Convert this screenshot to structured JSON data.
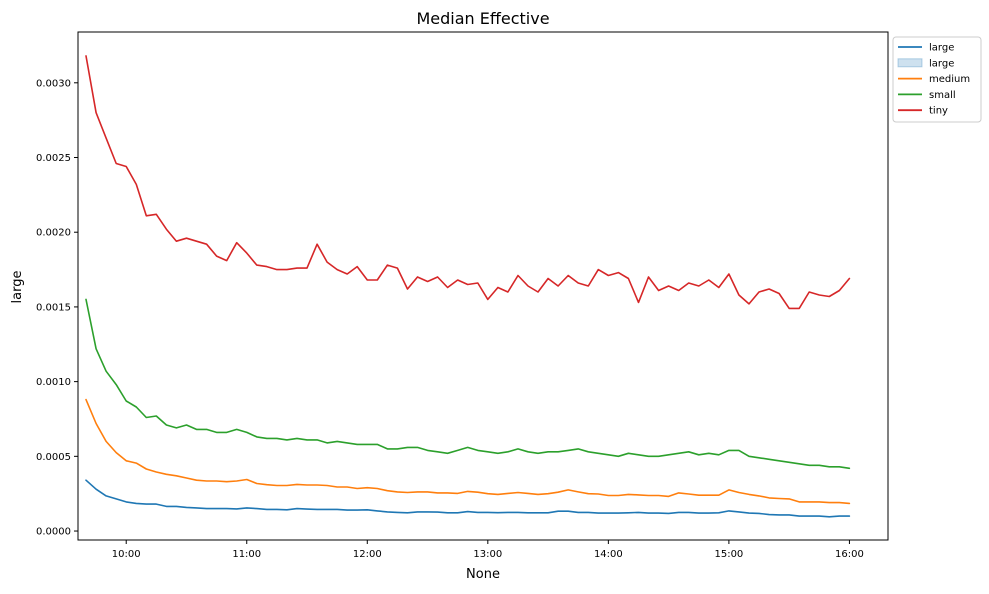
{
  "chart_data": {
    "type": "line",
    "title": "Median Effective",
    "xlabel": "None",
    "ylabel": "large",
    "x_range_hours": [
      9.6,
      16.32
    ],
    "ylim": [
      -6e-05,
      0.00334
    ],
    "x_ticks": [
      {
        "label": "10:00",
        "value": 10
      },
      {
        "label": "11:00",
        "value": 11
      },
      {
        "label": "12:00",
        "value": 12
      },
      {
        "label": "13:00",
        "value": 13
      },
      {
        "label": "14:00",
        "value": 14
      },
      {
        "label": "15:00",
        "value": 15
      },
      {
        "label": "16:00",
        "value": 16
      }
    ],
    "y_ticks": [
      {
        "label": "0.0000",
        "value": 0
      },
      {
        "label": "0.0005",
        "value": 0.0005
      },
      {
        "label": "0.0010",
        "value": 0.001
      },
      {
        "label": "0.0015",
        "value": 0.0015
      },
      {
        "label": "0.0020",
        "value": 0.002
      },
      {
        "label": "0.0025",
        "value": 0.0025
      },
      {
        "label": "0.0030",
        "value": 0.003
      }
    ],
    "grid": false,
    "legend_position": "outside-top-right",
    "legend": [
      {
        "label": "large",
        "kind": "line",
        "color": "#1f77b4"
      },
      {
        "label": "large",
        "kind": "band",
        "color": "#1f77b4"
      },
      {
        "label": "medium",
        "kind": "line",
        "color": "#ff7f0e"
      },
      {
        "label": "small",
        "kind": "line",
        "color": "#2ca02c"
      },
      {
        "label": "tiny",
        "kind": "line",
        "color": "#d62728"
      }
    ],
    "x": [
      "09:40",
      "09:45",
      "09:50",
      "09:55",
      "10:00",
      "10:05",
      "10:10",
      "10:15",
      "10:20",
      "10:25",
      "10:30",
      "10:35",
      "10:40",
      "10:45",
      "10:50",
      "10:55",
      "11:00",
      "11:05",
      "11:10",
      "11:15",
      "11:20",
      "11:25",
      "11:30",
      "11:35",
      "11:40",
      "11:45",
      "11:50",
      "11:55",
      "12:00",
      "12:05",
      "12:10",
      "12:15",
      "12:20",
      "12:25",
      "12:30",
      "12:35",
      "12:40",
      "12:45",
      "12:50",
      "12:55",
      "13:00",
      "13:05",
      "13:10",
      "13:15",
      "13:20",
      "13:25",
      "13:30",
      "13:35",
      "13:40",
      "13:45",
      "13:50",
      "13:55",
      "14:00",
      "14:05",
      "14:10",
      "14:15",
      "14:20",
      "14:25",
      "14:30",
      "14:35",
      "14:40",
      "14:45",
      "14:50",
      "14:55",
      "15:00",
      "15:05",
      "15:10",
      "15:15",
      "15:20",
      "15:25",
      "15:30",
      "15:35",
      "15:40",
      "15:45",
      "15:50",
      "15:55",
      "16:00"
    ],
    "series": [
      {
        "name": "large",
        "color": "#1f77b4",
        "values": [
          0.00034,
          0.00028,
          0.000235,
          0.000215,
          0.000195,
          0.000185,
          0.00018,
          0.00018,
          0.000165,
          0.000165,
          0.000158,
          0.000155,
          0.00015,
          0.00015,
          0.00015,
          0.000148,
          0.000155,
          0.00015,
          0.000145,
          0.000145,
          0.000142,
          0.00015,
          0.000147,
          0.000145,
          0.000145,
          0.000145,
          0.00014,
          0.00014,
          0.000142,
          0.000135,
          0.000128,
          0.000125,
          0.000122,
          0.000128,
          0.000128,
          0.000127,
          0.000122,
          0.000122,
          0.00013,
          0.000125,
          0.000125,
          0.000123,
          0.000125,
          0.000125,
          0.000122,
          0.000122,
          0.000122,
          0.000133,
          0.000133,
          0.000125,
          0.000125,
          0.00012,
          0.00012,
          0.00012,
          0.000122,
          0.000125,
          0.00012,
          0.00012,
          0.000118,
          0.000125,
          0.000125,
          0.00012,
          0.00012,
          0.000122,
          0.000135,
          0.000128,
          0.00012,
          0.000118,
          0.00011,
          0.000108,
          0.000108,
          0.0001,
          0.0001,
          0.0001,
          9.5e-05,
          0.0001,
          0.0001
        ]
      },
      {
        "name": "medium",
        "color": "#ff7f0e",
        "values": [
          0.00088,
          0.00072,
          0.0006,
          0.000525,
          0.00047,
          0.000455,
          0.000415,
          0.000395,
          0.00038,
          0.00037,
          0.000355,
          0.00034,
          0.000335,
          0.000335,
          0.00033,
          0.000335,
          0.000345,
          0.000318,
          0.00031,
          0.000305,
          0.000305,
          0.000312,
          0.000308,
          0.000308,
          0.000305,
          0.000295,
          0.000295,
          0.000285,
          0.00029,
          0.000285,
          0.00027,
          0.000262,
          0.000258,
          0.000262,
          0.000262,
          0.000255,
          0.000255,
          0.000252,
          0.000265,
          0.00026,
          0.00025,
          0.000245,
          0.000252,
          0.000258,
          0.000252,
          0.000245,
          0.00025,
          0.00026,
          0.000275,
          0.000262,
          0.00025,
          0.000248,
          0.000238,
          0.000238,
          0.000245,
          0.000242,
          0.000238,
          0.000238,
          0.000232,
          0.000255,
          0.000248,
          0.00024,
          0.00024,
          0.00024,
          0.000275,
          0.000258,
          0.000245,
          0.000235,
          0.000222,
          0.000218,
          0.000215,
          0.000195,
          0.000195,
          0.000195,
          0.00019,
          0.00019,
          0.000185
        ]
      },
      {
        "name": "small",
        "color": "#2ca02c",
        "values": [
          0.00155,
          0.00122,
          0.00107,
          0.00098,
          0.00087,
          0.00083,
          0.00076,
          0.00077,
          0.00071,
          0.00069,
          0.00071,
          0.00068,
          0.00068,
          0.00066,
          0.00066,
          0.00068,
          0.00066,
          0.00063,
          0.00062,
          0.00062,
          0.00061,
          0.00062,
          0.00061,
          0.00061,
          0.00059,
          0.0006,
          0.00059,
          0.00058,
          0.00058,
          0.00058,
          0.00055,
          0.00055,
          0.00056,
          0.00056,
          0.00054,
          0.00053,
          0.00052,
          0.00054,
          0.00056,
          0.00054,
          0.00053,
          0.00052,
          0.00053,
          0.00055,
          0.00053,
          0.00052,
          0.00053,
          0.00053,
          0.00054,
          0.00055,
          0.00053,
          0.00052,
          0.00051,
          0.0005,
          0.00052,
          0.00051,
          0.0005,
          0.0005,
          0.00051,
          0.00052,
          0.00053,
          0.00051,
          0.00052,
          0.00051,
          0.00054,
          0.00054,
          0.0005,
          0.00049,
          0.00048,
          0.00047,
          0.00046,
          0.00045,
          0.00044,
          0.00044,
          0.00043,
          0.00043,
          0.00042
        ]
      },
      {
        "name": "tiny",
        "color": "#d62728",
        "values": [
          0.00318,
          0.0028,
          0.00263,
          0.00246,
          0.00244,
          0.00232,
          0.00211,
          0.00212,
          0.00202,
          0.00194,
          0.00196,
          0.00194,
          0.00192,
          0.00184,
          0.00181,
          0.00193,
          0.00186,
          0.00178,
          0.00177,
          0.00175,
          0.00175,
          0.00176,
          0.00176,
          0.00192,
          0.0018,
          0.00175,
          0.00172,
          0.00177,
          0.00168,
          0.00168,
          0.00178,
          0.00176,
          0.00162,
          0.0017,
          0.00167,
          0.0017,
          0.00163,
          0.00168,
          0.00165,
          0.00166,
          0.00155,
          0.00163,
          0.0016,
          0.00171,
          0.00164,
          0.0016,
          0.00169,
          0.00164,
          0.00171,
          0.00166,
          0.00164,
          0.00175,
          0.00171,
          0.00173,
          0.00169,
          0.00153,
          0.0017,
          0.00161,
          0.00164,
          0.00161,
          0.00166,
          0.00164,
          0.00168,
          0.00163,
          0.00172,
          0.00158,
          0.00152,
          0.0016,
          0.00162,
          0.00159,
          0.00149,
          0.00149,
          0.0016,
          0.00158,
          0.00157,
          0.00161,
          0.00169
        ]
      }
    ]
  }
}
